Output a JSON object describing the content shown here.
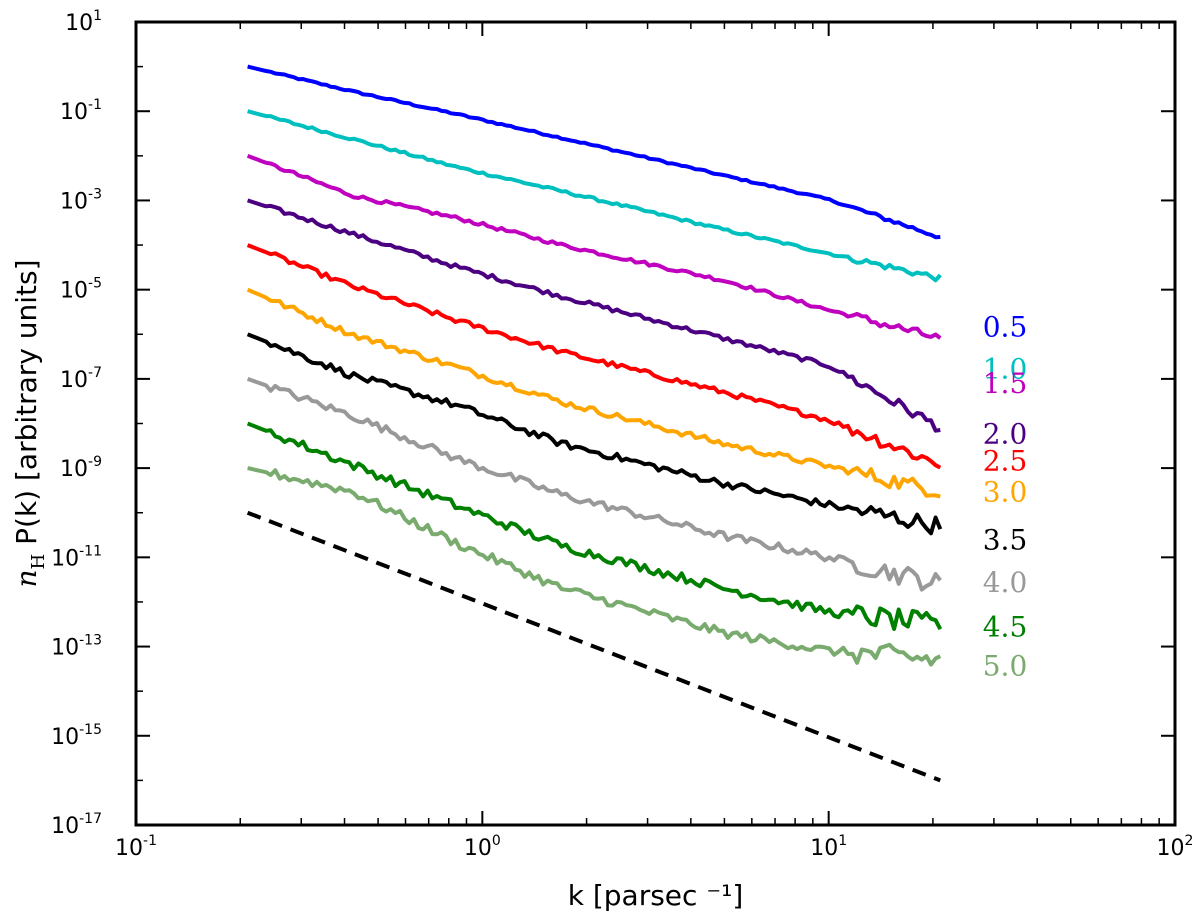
{
  "chart_data": {
    "type": "line",
    "scale": "log-log",
    "title": "",
    "xlabel": "k [parsec ⁻¹]",
    "ylabel_math": "n",
    "ylabel_sub": "H",
    "ylabel_rest": " P(k) [arbitrary units]",
    "xlim": [
      0.1,
      100
    ],
    "ylim": [
      1e-17,
      10
    ],
    "x_ticks": [
      {
        "value": 0.1,
        "base": "10",
        "exp": "-1"
      },
      {
        "value": 1,
        "base": "10",
        "exp": "0"
      },
      {
        "value": 10,
        "base": "10",
        "exp": "1"
      },
      {
        "value": 100,
        "base": "10",
        "exp": "2"
      }
    ],
    "y_ticks": [
      {
        "value": 1e-17,
        "base": "10",
        "exp": "-17"
      },
      {
        "value": 1e-15,
        "base": "10",
        "exp": "-15"
      },
      {
        "value": 1e-13,
        "base": "10",
        "exp": "-13"
      },
      {
        "value": 1e-11,
        "base": "10",
        "exp": "-11"
      },
      {
        "value": 1e-09,
        "base": "10",
        "exp": "-9"
      },
      {
        "value": 1e-07,
        "base": "10",
        "exp": "-7"
      },
      {
        "value": 1e-05,
        "base": "10",
        "exp": "-5"
      },
      {
        "value": 0.001,
        "base": "10",
        "exp": "-3"
      },
      {
        "value": 0.1,
        "base": "10",
        "exp": "-1"
      },
      {
        "value": 10,
        "base": "10",
        "exp": "1"
      }
    ],
    "series": [
      {
        "name": "0.5",
        "color": "#0000ff",
        "start": 1.0,
        "slope": -1.8,
        "noise": 0.04,
        "points": [
          [
            0.21,
            1.0
          ],
          [
            0.42,
            0.28
          ],
          [
            0.85,
            0.085
          ],
          [
            1.7,
            0.025
          ],
          [
            5.0,
            0.0036
          ],
          [
            10,
            0.00105
          ],
          [
            21,
            0.00015
          ]
        ]
      },
      {
        "name": "1.0",
        "color": "#00bfbf",
        "start": 0.1,
        "slope": -1.8,
        "noise": 0.06,
        "points": [
          [
            0.21,
            0.1
          ],
          [
            0.42,
            0.024
          ],
          [
            0.85,
            0.0055
          ],
          [
            1.7,
            0.0016
          ],
          [
            5.0,
            0.00022
          ],
          [
            10,
            6.5e-05
          ],
          [
            21,
            1.8e-05
          ]
        ]
      },
      {
        "name": "1.5",
        "color": "#bf00bf",
        "start": 0.01,
        "slope": -1.85,
        "noise": 0.08,
        "points": [
          [
            0.21,
            0.01
          ],
          [
            0.42,
            0.0013
          ],
          [
            0.85,
            0.0004
          ],
          [
            1.7,
            0.0001
          ],
          [
            5.0,
            1.6e-05
          ],
          [
            10,
            3.5e-06
          ],
          [
            21,
            8e-07
          ]
        ]
      },
      {
        "name": "2.0",
        "color": "#4b0082",
        "start": 0.001,
        "slope": -1.95,
        "noise": 0.1,
        "points": [
          [
            0.21,
            0.001
          ],
          [
            0.42,
            0.00018
          ],
          [
            0.85,
            3.2e-05
          ],
          [
            1.7,
            7e-06
          ],
          [
            5.0,
            8e-07
          ],
          [
            10,
            2e-07
          ],
          [
            21,
            8e-09
          ]
        ]
      },
      {
        "name": "2.5",
        "color": "#ff0000",
        "start": 0.0001,
        "slope": -2.05,
        "noise": 0.12,
        "points": [
          [
            0.21,
            0.0001
          ],
          [
            0.42,
            1.2e-05
          ],
          [
            0.85,
            2e-06
          ],
          [
            1.7,
            4e-07
          ],
          [
            5.0,
            5e-08
          ],
          [
            10,
            1.2e-08
          ],
          [
            21,
            1.2e-09
          ]
        ]
      },
      {
        "name": "3.0",
        "color": "#ffa500",
        "start": 1e-05,
        "slope": -2.1,
        "noise": 0.14,
        "points": [
          [
            0.21,
            1e-05
          ],
          [
            0.42,
            1e-06
          ],
          [
            0.85,
            1.8e-07
          ],
          [
            1.7,
            3e-08
          ],
          [
            5.0,
            3.5e-09
          ],
          [
            10,
            1.1e-09
          ],
          [
            21,
            3e-10
          ]
        ]
      },
      {
        "name": "3.5",
        "color": "#000000",
        "start": 1e-06,
        "slope": -2.15,
        "noise": 0.16,
        "points": [
          [
            0.21,
            1e-06
          ],
          [
            0.42,
            1.2e-07
          ],
          [
            0.85,
            2.5e-08
          ],
          [
            1.7,
            3.5e-09
          ],
          [
            5.0,
            4.5e-10
          ],
          [
            10,
            1.5e-10
          ],
          [
            21,
            5e-11
          ]
        ]
      },
      {
        "name": "4.0",
        "color": "#999999",
        "start": 1e-07,
        "slope": -2.2,
        "noise": 0.18,
        "points": [
          [
            0.21,
            1e-07
          ],
          [
            0.42,
            1.5e-08
          ],
          [
            0.85,
            1.6e-09
          ],
          [
            1.7,
            2.5e-10
          ],
          [
            5.0,
            3e-11
          ],
          [
            10,
            1e-11
          ],
          [
            21,
            2.5e-12
          ]
        ]
      },
      {
        "name": "4.5",
        "color": "#008000",
        "start": 1e-08,
        "slope": -2.25,
        "noise": 0.2,
        "points": [
          [
            0.21,
            1e-08
          ],
          [
            0.42,
            1.2e-09
          ],
          [
            0.85,
            1.4e-10
          ],
          [
            1.7,
            1.8e-11
          ],
          [
            5.0,
            2e-12
          ],
          [
            10,
            6e-13
          ],
          [
            21,
            3e-13
          ]
        ]
      },
      {
        "name": "5.0",
        "color": "#7aab6e",
        "start": 1e-09,
        "slope": -2.3,
        "noise": 0.2,
        "points": [
          [
            0.21,
            1e-09
          ],
          [
            0.42,
            3e-10
          ],
          [
            0.85,
            2e-11
          ],
          [
            1.7,
            2e-12
          ],
          [
            5.0,
            2e-13
          ],
          [
            10,
            8e-14
          ],
          [
            21,
            5e-14
          ]
        ]
      }
    ],
    "reference_line": {
      "style": "dashed",
      "color": "#000000",
      "points": [
        [
          0.21,
          1e-10
        ],
        [
          21,
          1e-16
        ]
      ]
    }
  }
}
